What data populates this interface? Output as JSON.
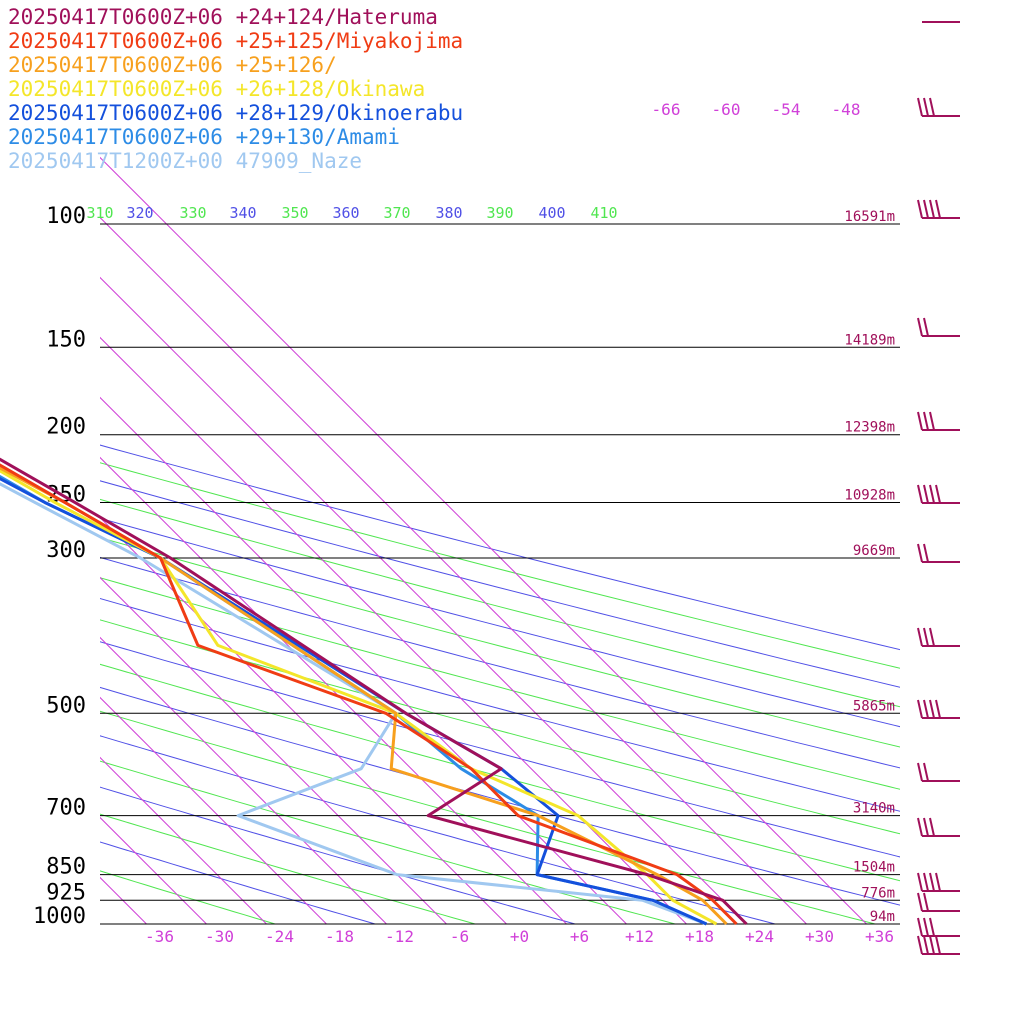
{
  "legend": [
    {
      "label": "20250417T0600Z+06 +24+124/Hateruma",
      "color": "#a0105a"
    },
    {
      "label": "20250417T0600Z+06 +25+125/Miyakojima",
      "color": "#f03c14"
    },
    {
      "label": "20250417T0600Z+06 +25+126/",
      "color": "#f7a01e"
    },
    {
      "label": "20250417T0600Z+06 +26+128/Okinawa",
      "color": "#f4e62a"
    },
    {
      "label": "20250417T0600Z+06 +28+129/Okinoerabu",
      "color": "#1450dc"
    },
    {
      "label": "20250417T0600Z+06 +29+130/Amami",
      "color": "#2d8ce6"
    },
    {
      "label": "20250417T1200Z+00 47909_Naze",
      "color": "#a0c8f0"
    }
  ],
  "chart_data": {
    "type": "line",
    "title": "",
    "xlabel": "",
    "ylabel": "",
    "xlim": [
      -40,
      40
    ],
    "y_scale": "log-pressure",
    "pressure_levels": [
      {
        "p": 100,
        "label": "100",
        "height": "16591m"
      },
      {
        "p": 150,
        "label": "150",
        "height": "14189m"
      },
      {
        "p": 200,
        "label": "200",
        "height": "12398m"
      },
      {
        "p": 250,
        "label": "250",
        "height": "10928m"
      },
      {
        "p": 300,
        "label": "300",
        "height": "9669m"
      },
      {
        "p": 500,
        "label": "500",
        "height": "5865m"
      },
      {
        "p": 700,
        "label": "700",
        "height": "3140m"
      },
      {
        "p": 850,
        "label": "850",
        "height": "1504m"
      },
      {
        "p": 925,
        "label": "925",
        "height": "776m"
      },
      {
        "p": 1000,
        "label": "1000",
        "height": "94m"
      }
    ],
    "x_ticks": [
      "-36",
      "-30",
      "-24",
      "-18",
      "-12",
      "-6",
      "+0",
      "+6",
      "+12",
      "+18",
      "+24",
      "+30",
      "+36"
    ],
    "x_tick_values": [
      -36,
      -30,
      -24,
      -18,
      -12,
      -6,
      0,
      6,
      12,
      18,
      24,
      30,
      36
    ],
    "theta_labels": [
      "310",
      "320",
      "330",
      "340",
      "350",
      "360",
      "370",
      "380",
      "390",
      "400",
      "410"
    ],
    "isotherm_labels_top": [
      "-66",
      "-60",
      "-54",
      "-48"
    ],
    "series": [
      {
        "name": "20250417T0600Z+06 +24+124/Hateruma",
        "points": [
          [
            24,
            1000
          ],
          [
            24,
            925
          ],
          [
            19,
            850
          ],
          [
            3,
            700
          ],
          [
            15,
            600
          ],
          [
            11,
            500
          ],
          [
            3,
            300
          ],
          [
            -1,
            250
          ],
          [
            -6,
            200
          ],
          [
            -13,
            150
          ],
          [
            -16,
            100
          ],
          [
            -1,
            80
          ],
          [
            6,
            72
          ],
          [
            6,
            65
          ]
        ]
      },
      {
        "name": "20250417T0600Z+06 +25+125/Miyakojima",
        "points": [
          [
            23,
            1000
          ],
          [
            23,
            925
          ],
          [
            22,
            850
          ],
          [
            12,
            700
          ],
          [
            12,
            600
          ],
          [
            9,
            500
          ],
          [
            -3,
            400
          ],
          [
            2,
            300
          ],
          [
            -2,
            250
          ],
          [
            -7,
            200
          ],
          [
            -13,
            150
          ],
          [
            -11,
            100
          ],
          [
            0,
            80
          ],
          [
            5,
            72
          ],
          [
            5,
            65
          ]
        ]
      },
      {
        "name": "20250417T0600Z+06 +25+126/",
        "points": [
          [
            22,
            1000
          ],
          [
            22,
            925
          ],
          [
            20,
            850
          ],
          [
            14,
            700
          ],
          [
            4,
            600
          ],
          [
            10,
            500
          ],
          [
            2,
            300
          ],
          [
            -2,
            250
          ],
          [
            -8,
            200
          ],
          [
            -13,
            150
          ],
          [
            -11,
            100
          ],
          [
            0,
            80
          ],
          [
            5,
            72
          ],
          [
            5,
            65
          ]
        ]
      },
      {
        "name": "20250417T0600Z+06 +26+128/Okinawa",
        "points": [
          [
            21,
            1000
          ],
          [
            19,
            925
          ],
          [
            19,
            850
          ],
          [
            18,
            700
          ],
          [
            12,
            600
          ],
          [
            10,
            500
          ],
          [
            -1,
            400
          ],
          [
            2,
            300
          ],
          [
            -3,
            250
          ],
          [
            -8,
            200
          ],
          [
            -12,
            150
          ],
          [
            -8,
            100
          ],
          [
            2,
            80
          ],
          [
            6,
            72
          ],
          [
            6,
            65
          ]
        ]
      },
      {
        "name": "20250417T0600Z+06 +28+129/Okinoerabu",
        "points": [
          [
            20,
            1000
          ],
          [
            17,
            925
          ],
          [
            8,
            850
          ],
          [
            16,
            700
          ],
          [
            15,
            600
          ],
          [
            11,
            500
          ],
          [
            2,
            300
          ],
          [
            -4,
            250
          ],
          [
            -10,
            200
          ],
          [
            -9,
            150
          ],
          [
            -5,
            100
          ],
          [
            4,
            80
          ],
          [
            6,
            72
          ],
          [
            6,
            65
          ]
        ]
      },
      {
        "name": "20250417T0600Z+06 +29+130/Amami",
        "points": [
          [
            20,
            1000
          ],
          [
            17,
            925
          ],
          [
            8,
            850
          ],
          [
            14,
            700
          ],
          [
            11,
            600
          ],
          [
            10,
            500
          ],
          [
            2,
            300
          ],
          [
            -4,
            250
          ],
          [
            -9,
            200
          ],
          [
            -8,
            150
          ],
          [
            -2,
            100
          ],
          [
            6,
            80
          ],
          [
            6,
            72
          ],
          [
            6,
            65
          ]
        ]
      },
      {
        "name": "20250417T1200Z+00 47909_Naze",
        "points": [
          [
            20,
            1000
          ],
          [
            16,
            925
          ],
          [
            -6,
            850
          ],
          [
            -16,
            700
          ],
          [
            1,
            600
          ],
          [
            10,
            500
          ],
          [
            0,
            300
          ],
          [
            -5,
            250
          ],
          [
            -11,
            200
          ],
          [
            -6,
            150
          ],
          [
            -7,
            100
          ]
        ]
      }
    ]
  }
}
